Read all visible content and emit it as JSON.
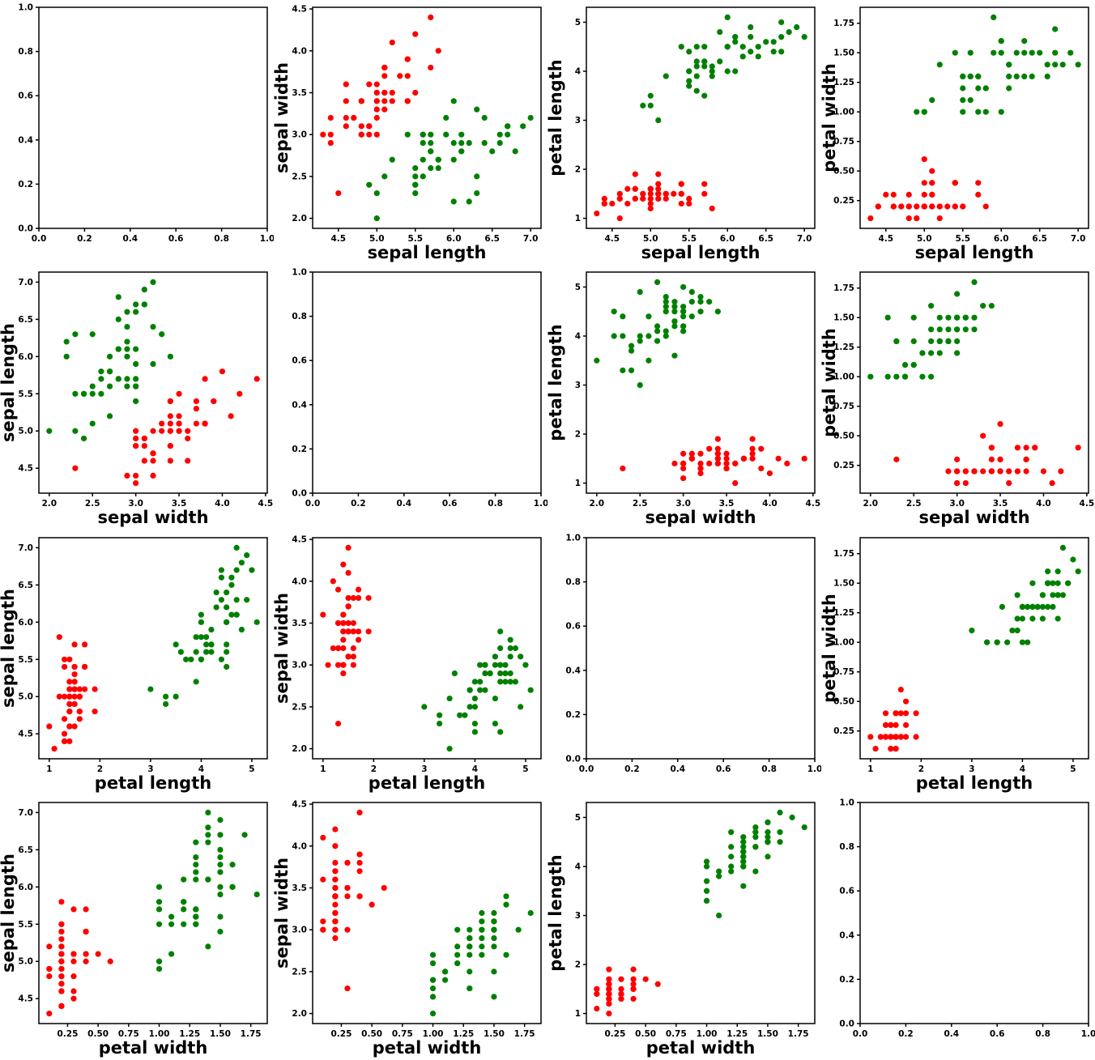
{
  "chart_data": {
    "type": "scatter",
    "variant": "scatter-matrix",
    "grid": {
      "rows": 4,
      "cols": 4
    },
    "arrangement": {
      "x_feature_by": "row",
      "y_feature_by": "column",
      "diagonal": "empty-axes"
    },
    "features": [
      "sepal length",
      "sepal width",
      "petal length",
      "petal width"
    ],
    "axes": {
      "sepal length": {
        "label": "sepal length",
        "min": 4.165,
        "max": 7.135,
        "ticks": [
          4.5,
          5.0,
          5.5,
          6.0,
          6.5,
          7.0
        ],
        "decimals": 1
      },
      "sepal width": {
        "label": "sepal width",
        "min": 1.88,
        "max": 4.52,
        "ticks": [
          2.0,
          2.5,
          3.0,
          3.5,
          4.0,
          4.5
        ],
        "decimals": 1
      },
      "petal length": {
        "label": "petal length",
        "min": 0.795,
        "max": 5.305,
        "ticks": [
          1,
          2,
          3,
          4,
          5
        ],
        "decimals": 0
      },
      "petal width": {
        "label": "petal width",
        "min": 0.015,
        "max": 1.885,
        "ticks": [
          0.25,
          0.5,
          0.75,
          1.0,
          1.25,
          1.5,
          1.75
        ],
        "decimals": 2
      }
    },
    "empty_axis": {
      "min": 0.0,
      "max": 1.0,
      "ticks": [
        0.0,
        0.2,
        0.4,
        0.6,
        0.8,
        1.0
      ],
      "decimals": 1
    },
    "spine_color": "#000000",
    "background_color": "#ffffff",
    "series": [
      {
        "name": "red",
        "color": "#ff0000",
        "points": [
          [
            5.1,
            3.5,
            1.4,
            0.2
          ],
          [
            4.9,
            3.0,
            1.4,
            0.2
          ],
          [
            4.7,
            3.2,
            1.3,
            0.2
          ],
          [
            4.6,
            3.1,
            1.5,
            0.2
          ],
          [
            5.0,
            3.6,
            1.4,
            0.2
          ],
          [
            5.4,
            3.9,
            1.7,
            0.4
          ],
          [
            4.6,
            3.4,
            1.4,
            0.3
          ],
          [
            5.0,
            3.4,
            1.5,
            0.2
          ],
          [
            4.4,
            2.9,
            1.4,
            0.2
          ],
          [
            4.9,
            3.1,
            1.5,
            0.1
          ],
          [
            5.4,
            3.7,
            1.5,
            0.2
          ],
          [
            4.8,
            3.4,
            1.6,
            0.2
          ],
          [
            4.8,
            3.0,
            1.4,
            0.1
          ],
          [
            4.3,
            3.0,
            1.1,
            0.1
          ],
          [
            5.8,
            4.0,
            1.2,
            0.2
          ],
          [
            5.7,
            4.4,
            1.5,
            0.4
          ],
          [
            5.4,
            3.9,
            1.3,
            0.4
          ],
          [
            5.1,
            3.5,
            1.4,
            0.3
          ],
          [
            5.7,
            3.8,
            1.7,
            0.3
          ],
          [
            5.1,
            3.8,
            1.5,
            0.3
          ],
          [
            5.4,
            3.4,
            1.7,
            0.2
          ],
          [
            5.1,
            3.7,
            1.5,
            0.4
          ],
          [
            4.6,
            3.6,
            1.0,
            0.2
          ],
          [
            5.1,
            3.3,
            1.7,
            0.5
          ],
          [
            4.8,
            3.4,
            1.9,
            0.2
          ],
          [
            5.0,
            3.0,
            1.6,
            0.2
          ],
          [
            5.0,
            3.4,
            1.6,
            0.4
          ],
          [
            5.2,
            3.5,
            1.5,
            0.2
          ],
          [
            5.2,
            3.4,
            1.4,
            0.2
          ],
          [
            4.7,
            3.2,
            1.6,
            0.2
          ],
          [
            4.8,
            3.1,
            1.6,
            0.2
          ],
          [
            5.4,
            3.4,
            1.5,
            0.4
          ],
          [
            5.2,
            4.1,
            1.5,
            0.1
          ],
          [
            5.5,
            4.2,
            1.4,
            0.2
          ],
          [
            4.9,
            3.1,
            1.5,
            0.2
          ],
          [
            5.0,
            3.2,
            1.2,
            0.2
          ],
          [
            5.5,
            3.5,
            1.3,
            0.2
          ],
          [
            4.9,
            3.6,
            1.4,
            0.1
          ],
          [
            4.4,
            3.0,
            1.3,
            0.2
          ],
          [
            5.1,
            3.4,
            1.5,
            0.2
          ],
          [
            5.0,
            3.5,
            1.3,
            0.3
          ],
          [
            4.5,
            2.3,
            1.3,
            0.3
          ],
          [
            4.4,
            3.2,
            1.3,
            0.2
          ],
          [
            5.0,
            3.5,
            1.6,
            0.6
          ],
          [
            5.1,
            3.8,
            1.9,
            0.4
          ],
          [
            4.8,
            3.0,
            1.4,
            0.3
          ],
          [
            5.1,
            3.8,
            1.6,
            0.2
          ],
          [
            4.6,
            3.2,
            1.4,
            0.2
          ],
          [
            5.3,
            3.7,
            1.5,
            0.2
          ],
          [
            5.0,
            3.3,
            1.4,
            0.2
          ]
        ]
      },
      {
        "name": "green",
        "color": "#008000",
        "points": [
          [
            7.0,
            3.2,
            4.7,
            1.4
          ],
          [
            6.4,
            3.2,
            4.5,
            1.5
          ],
          [
            6.9,
            3.1,
            4.9,
            1.5
          ],
          [
            5.5,
            2.3,
            4.0,
            1.3
          ],
          [
            6.5,
            2.8,
            4.6,
            1.5
          ],
          [
            5.7,
            2.8,
            4.5,
            1.3
          ],
          [
            6.3,
            3.3,
            4.7,
            1.6
          ],
          [
            4.9,
            2.4,
            3.3,
            1.0
          ],
          [
            6.6,
            2.9,
            4.6,
            1.3
          ],
          [
            5.2,
            2.7,
            3.9,
            1.4
          ],
          [
            5.0,
            2.0,
            3.5,
            1.0
          ],
          [
            5.9,
            3.0,
            4.2,
            1.5
          ],
          [
            6.0,
            2.2,
            4.0,
            1.0
          ],
          [
            6.1,
            2.9,
            4.7,
            1.4
          ],
          [
            5.6,
            2.9,
            3.6,
            1.3
          ],
          [
            6.7,
            3.1,
            4.4,
            1.4
          ],
          [
            5.6,
            3.0,
            4.5,
            1.5
          ],
          [
            5.8,
            2.7,
            4.1,
            1.0
          ],
          [
            6.2,
            2.2,
            4.5,
            1.5
          ],
          [
            5.6,
            2.5,
            3.9,
            1.1
          ],
          [
            5.9,
            3.2,
            4.8,
            1.8
          ],
          [
            6.1,
            2.8,
            4.0,
            1.3
          ],
          [
            6.3,
            2.5,
            4.9,
            1.5
          ],
          [
            6.1,
            2.8,
            4.7,
            1.2
          ],
          [
            6.4,
            2.9,
            4.3,
            1.3
          ],
          [
            6.6,
            3.0,
            4.4,
            1.4
          ],
          [
            6.8,
            2.8,
            4.8,
            1.4
          ],
          [
            6.7,
            3.0,
            5.0,
            1.7
          ],
          [
            6.0,
            2.9,
            4.5,
            1.5
          ],
          [
            5.7,
            2.6,
            3.5,
            1.0
          ],
          [
            5.5,
            2.4,
            3.8,
            1.1
          ],
          [
            5.5,
            2.4,
            3.7,
            1.0
          ],
          [
            5.8,
            2.7,
            3.9,
            1.2
          ],
          [
            6.0,
            2.7,
            5.1,
            1.6
          ],
          [
            5.4,
            3.0,
            4.5,
            1.5
          ],
          [
            6.0,
            3.4,
            4.5,
            1.6
          ],
          [
            6.7,
            3.1,
            4.7,
            1.5
          ],
          [
            6.3,
            2.3,
            4.4,
            1.3
          ],
          [
            5.6,
            3.0,
            4.1,
            1.3
          ],
          [
            5.5,
            2.5,
            4.0,
            1.3
          ],
          [
            5.5,
            2.6,
            4.4,
            1.2
          ],
          [
            6.1,
            3.0,
            4.6,
            1.4
          ],
          [
            5.8,
            2.6,
            4.0,
            1.2
          ],
          [
            5.0,
            2.3,
            3.3,
            1.0
          ],
          [
            5.6,
            2.7,
            4.2,
            1.3
          ],
          [
            5.7,
            3.0,
            4.2,
            1.2
          ],
          [
            5.7,
            2.9,
            4.2,
            1.3
          ],
          [
            6.2,
            2.9,
            4.3,
            1.3
          ],
          [
            5.1,
            2.5,
            3.0,
            1.1
          ],
          [
            5.7,
            2.8,
            4.1,
            1.3
          ]
        ]
      }
    ]
  }
}
